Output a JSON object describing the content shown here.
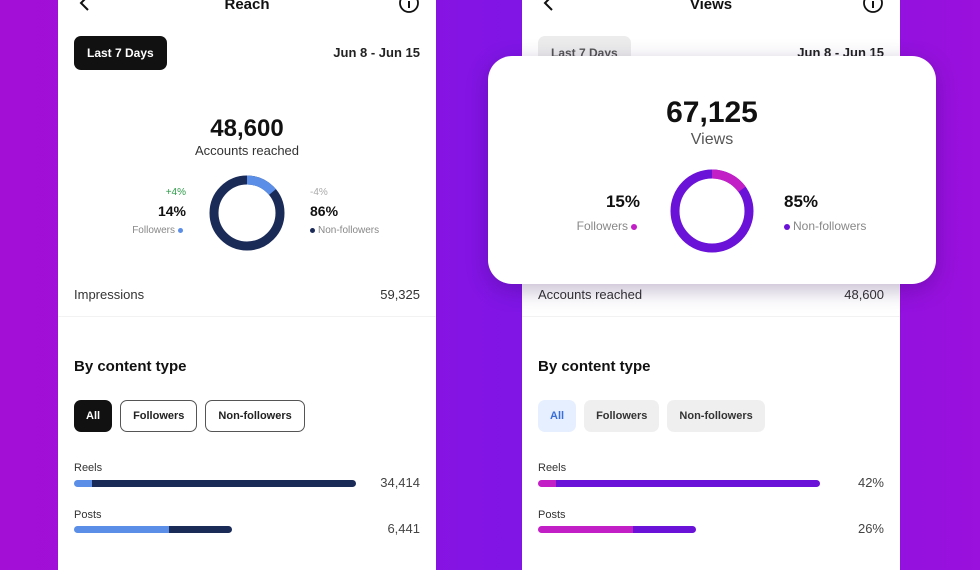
{
  "left": {
    "title": "Reach",
    "date_pill": "Last 7 Days",
    "date_range": "Jun 8 - Jun 15",
    "total": "48,600",
    "total_label": "Accounts reached",
    "followers": {
      "change": "+4%",
      "pct": "14%",
      "label": "Followers",
      "fraction": 0.14
    },
    "nonfollowers": {
      "change": "-4%",
      "pct": "86%",
      "label": "Non-followers"
    },
    "metric": {
      "label": "Impressions",
      "value": "59,325"
    },
    "section": "By content type",
    "filters": [
      "All",
      "Followers",
      "Non-followers"
    ],
    "bars": [
      {
        "label": "Reels",
        "value": "34,414"
      },
      {
        "label": "Posts",
        "value": "6,441"
      }
    ]
  },
  "right": {
    "title": "Views",
    "date_pill": "Last 7 Days",
    "date_range": "Jun 8 - Jun 15",
    "total": "67,125",
    "total_label": "Views",
    "followers": {
      "pct": "15%",
      "label": "Followers",
      "fraction": 0.15
    },
    "nonfollowers": {
      "pct": "85%",
      "label": "Non-followers"
    },
    "metric": {
      "label": "Accounts reached",
      "value": "48,600"
    },
    "section": "By content type",
    "filters": [
      "All",
      "Followers",
      "Non-followers"
    ],
    "bars": [
      {
        "label": "Reels",
        "value": "42%"
      },
      {
        "label": "Posts",
        "value": "26%"
      }
    ]
  },
  "colors": {
    "left_follower": "#5b8ee6",
    "left_nonfollower": "#1b2b58",
    "right_follower": "#c21fc6",
    "right_nonfollower": "#6a12d8"
  }
}
